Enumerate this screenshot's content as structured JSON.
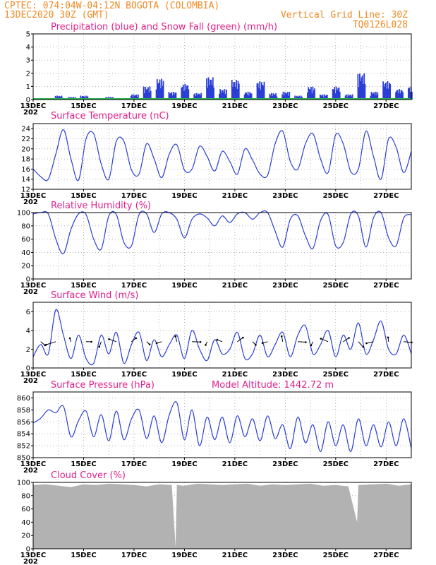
{
  "header": {
    "line1_left": "CPTEC:   074:04W-04:12N  BOGOTA (COLOMBIA)",
    "line2_left": "13DEC2020 30Z (GMT)",
    "line2_right": "Vertical Grid Line: 30Z",
    "line3_right": "TQ0126L028",
    "x_tick_overflow": "202"
  },
  "colors": {
    "header": "#f08a24",
    "title": "#e0218a",
    "line": "#2a3fd6",
    "snow": "#22b14c",
    "cloud": "#b2b2b2"
  },
  "chart_data": [
    {
      "id": "precip",
      "type": "bar",
      "title": "Precipitation (blue) and Snow Fall (green) (mm/h)",
      "ylim": [
        0,
        5
      ],
      "yticks": [
        "0",
        "1",
        "2",
        "3",
        "4",
        "5"
      ],
      "x_range_days": [
        13,
        28
      ],
      "xticks": [
        "13DEC",
        "15DEC",
        "17DEC",
        "19DEC",
        "21DEC",
        "23DEC",
        "25DEC",
        "27DEC"
      ],
      "series": [
        {
          "name": "Precipitation",
          "x": [
            13,
            13.5,
            14,
            14.5,
            15,
            15.5,
            16,
            16.5,
            17,
            17.5,
            18,
            18.5,
            19,
            19.5,
            20,
            20.5,
            21,
            21.5,
            22,
            22.5,
            23,
            23.5,
            24,
            24.5,
            25,
            25.5,
            26,
            26.5,
            27,
            27.5,
            28
          ],
          "values": [
            0,
            0.1,
            0.3,
            0.2,
            0.3,
            0.1,
            0.2,
            0.1,
            0.4,
            1.0,
            1.6,
            0.6,
            1.2,
            0.5,
            1.7,
            0.8,
            1.5,
            0.6,
            1.4,
            0.5,
            0.6,
            0.3,
            1.0,
            0.4,
            1.0,
            0.4,
            2.0,
            0.6,
            1.4,
            0.8,
            1.0
          ]
        },
        {
          "name": "Snow Fall",
          "x": [
            13,
            28
          ],
          "values": [
            0,
            0
          ]
        }
      ]
    },
    {
      "id": "temp",
      "type": "line",
      "title": "Surface Temperature (nC)",
      "ylim": [
        12,
        25
      ],
      "yticks": [
        "12",
        "14",
        "16",
        "18",
        "20",
        "22",
        "24"
      ],
      "x_range_days": [
        13,
        28
      ],
      "xticks": [
        "13DEC",
        "15DEC",
        "17DEC",
        "19DEC",
        "21DEC",
        "23DEC",
        "25DEC",
        "27DEC"
      ],
      "x": [
        13.0,
        13.3,
        13.6,
        13.9,
        14.2,
        14.5,
        14.8,
        15.1,
        15.4,
        15.7,
        16.0,
        16.3,
        16.6,
        16.9,
        17.2,
        17.5,
        17.8,
        18.1,
        18.4,
        18.7,
        19.0,
        19.3,
        19.6,
        19.9,
        20.2,
        20.5,
        20.8,
        21.1,
        21.4,
        21.7,
        22.0,
        22.3,
        22.6,
        22.9,
        23.2,
        23.5,
        23.8,
        24.1,
        24.4,
        24.7,
        25.0,
        25.3,
        25.6,
        25.9,
        26.2,
        26.5,
        26.8,
        27.1,
        27.4,
        27.7,
        28.0
      ],
      "values": [
        16,
        14.5,
        14,
        19,
        23.8,
        18,
        13.8,
        22,
        23,
        17,
        14,
        21.5,
        21.5,
        15.8,
        15,
        21,
        18,
        14.3,
        19,
        20.8,
        15.8,
        16,
        20.5,
        18.5,
        15.6,
        19.5,
        17.5,
        15,
        20,
        17.8,
        15,
        14.8,
        21,
        23.5,
        17.5,
        16,
        21,
        23,
        18,
        15.3,
        22.8,
        21,
        15.5,
        16,
        23.5,
        18.5,
        14,
        22,
        20.3,
        15.3,
        19.5
      ]
    },
    {
      "id": "rh",
      "type": "line",
      "title": "Relative Humidity (%)",
      "ylim": [
        0,
        100
      ],
      "yticks": [
        "0",
        "20",
        "40",
        "60",
        "80",
        "100"
      ],
      "x_range_days": [
        13,
        28
      ],
      "xticks": [
        "13DEC",
        "15DEC",
        "17DEC",
        "19DEC",
        "21DEC",
        "23DEC",
        "25DEC",
        "27DEC"
      ],
      "x": [
        13.0,
        13.3,
        13.6,
        13.9,
        14.2,
        14.5,
        14.8,
        15.1,
        15.4,
        15.7,
        16.0,
        16.3,
        16.6,
        16.9,
        17.2,
        17.5,
        17.8,
        18.1,
        18.4,
        18.7,
        19.0,
        19.3,
        19.6,
        19.9,
        20.2,
        20.5,
        20.8,
        21.1,
        21.4,
        21.7,
        22.0,
        22.3,
        22.6,
        22.9,
        23.2,
        23.5,
        23.8,
        24.1,
        24.4,
        24.7,
        25.0,
        25.3,
        25.6,
        25.9,
        26.2,
        26.5,
        26.8,
        27.1,
        27.4,
        27.7,
        28.0
      ],
      "values": [
        98,
        100,
        98,
        60,
        38,
        75,
        98,
        97,
        60,
        45,
        95,
        97,
        55,
        50,
        97,
        98,
        70,
        98,
        100,
        90,
        62,
        90,
        98,
        92,
        80,
        95,
        85,
        98,
        100,
        90,
        100,
        100,
        72,
        48,
        90,
        95,
        65,
        46,
        88,
        97,
        50,
        55,
        98,
        95,
        48,
        92,
        100,
        62,
        50,
        92,
        97
      ]
    },
    {
      "id": "wind",
      "type": "line",
      "title": "Surface Wind (m/s)",
      "ylim": [
        0,
        7
      ],
      "yticks": [
        "0",
        "2",
        "4",
        "6"
      ],
      "x_range_days": [
        13,
        28
      ],
      "xticks": [
        "13DEC",
        "15DEC",
        "17DEC",
        "19DEC",
        "21DEC",
        "23DEC",
        "25DEC",
        "27DEC"
      ],
      "x": [
        13.0,
        13.3,
        13.6,
        13.9,
        14.2,
        14.5,
        14.8,
        15.1,
        15.4,
        15.7,
        16.0,
        16.3,
        16.6,
        16.9,
        17.2,
        17.5,
        17.8,
        18.1,
        18.4,
        18.7,
        19.0,
        19.3,
        19.6,
        19.9,
        20.2,
        20.5,
        20.8,
        21.1,
        21.4,
        21.7,
        22.0,
        22.3,
        22.6,
        22.9,
        23.2,
        23.5,
        23.8,
        24.1,
        24.4,
        24.7,
        25.0,
        25.3,
        25.6,
        25.9,
        26.2,
        26.5,
        26.8,
        27.1,
        27.4,
        27.7,
        28.0
      ],
      "values": [
        1.2,
        2.5,
        1.5,
        6.2,
        3.5,
        1.0,
        3.5,
        1.0,
        0.5,
        3.5,
        1.5,
        3.8,
        0.5,
        2.5,
        3.8,
        0.8,
        3.0,
        1.2,
        2.5,
        3.5,
        1.0,
        4.0,
        2.0,
        0.8,
        3.0,
        1.5,
        2.0,
        3.8,
        1.0,
        1.5,
        3.5,
        1.2,
        2.5,
        3.8,
        1.2,
        3.5,
        4.5,
        1.5,
        2.5,
        4.0,
        1.2,
        3.5,
        2.0,
        4.8,
        1.5,
        3.0,
        5.0,
        2.0,
        1.5,
        3.5,
        1.5
      ]
    },
    {
      "id": "pres",
      "type": "line",
      "title": "Surface Pressure (hPa)",
      "subtitle": "Model Altitude: 1442.72 m",
      "ylim": [
        850,
        861
      ],
      "yticks": [
        "850",
        "852",
        "854",
        "856",
        "858",
        "860"
      ],
      "x_range_days": [
        13,
        28
      ],
      "xticks": [
        "13DEC",
        "15DEC",
        "17DEC",
        "19DEC",
        "21DEC",
        "23DEC",
        "25DEC",
        "27DEC"
      ],
      "x": [
        13.0,
        13.3,
        13.6,
        13.9,
        14.2,
        14.5,
        14.8,
        15.1,
        15.4,
        15.7,
        16.0,
        16.3,
        16.6,
        16.9,
        17.2,
        17.5,
        17.8,
        18.1,
        18.4,
        18.7,
        19.0,
        19.3,
        19.6,
        19.9,
        20.2,
        20.5,
        20.8,
        21.1,
        21.4,
        21.7,
        22.0,
        22.3,
        22.6,
        22.9,
        23.2,
        23.5,
        23.8,
        24.1,
        24.4,
        24.7,
        25.0,
        25.3,
        25.6,
        25.9,
        26.2,
        26.5,
        26.8,
        27.1,
        27.4,
        27.7,
        28.0
      ],
      "values": [
        855.8,
        856.6,
        858.0,
        857.5,
        858.6,
        853.5,
        856.2,
        857.8,
        853.5,
        857.2,
        852.8,
        857.8,
        853.0,
        856.5,
        858.0,
        853.2,
        857.0,
        852.5,
        857.2,
        859.2,
        853.0,
        858.0,
        852.0,
        856.8,
        853.0,
        856.8,
        852.5,
        857.0,
        853.5,
        856.5,
        852.8,
        857.0,
        853.2,
        855.5,
        851.5,
        856.8,
        852.5,
        855.5,
        851.0,
        856.0,
        852.0,
        855.5,
        851.0,
        856.5,
        852.0,
        855.5,
        851.8,
        856.0,
        852.0,
        856.5,
        851.5
      ]
    },
    {
      "id": "cloud",
      "type": "area",
      "title": "Cloud Cover (%)",
      "ylim": [
        0,
        100
      ],
      "yticks": [
        "0",
        "20",
        "40",
        "60",
        "80",
        "100"
      ],
      "x_range_days": [
        13,
        28
      ],
      "xticks": [
        "13DEC",
        "15DEC",
        "17DEC",
        "19DEC",
        "21DEC",
        "23DEC",
        "25DEC",
        "27DEC"
      ],
      "x": [
        13.0,
        13.5,
        14.0,
        14.5,
        15.0,
        15.5,
        16.0,
        16.5,
        17.0,
        17.5,
        18.0,
        18.5,
        18.65,
        18.7,
        19.0,
        19.5,
        20.0,
        20.5,
        21.0,
        21.5,
        22.0,
        22.5,
        23.0,
        23.5,
        24.0,
        24.5,
        25.0,
        25.5,
        25.85,
        25.9,
        26.5,
        27.0,
        27.5,
        28.0
      ],
      "values": [
        96,
        97,
        95,
        93,
        97,
        96,
        98,
        97,
        96,
        94,
        97,
        96,
        2,
        96,
        95,
        98,
        97,
        96,
        97,
        98,
        95,
        97,
        96,
        97,
        98,
        95,
        96,
        94,
        40,
        96,
        97,
        98,
        95,
        97
      ]
    }
  ]
}
